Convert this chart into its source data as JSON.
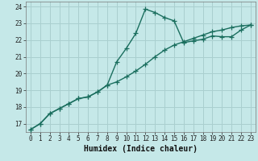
{
  "xlabel": "Humidex (Indice chaleur)",
  "xlim": [
    -0.5,
    23.5
  ],
  "ylim": [
    16.5,
    24.3
  ],
  "yticks": [
    17,
    18,
    19,
    20,
    21,
    22,
    23,
    24
  ],
  "xticks": [
    0,
    1,
    2,
    3,
    4,
    5,
    6,
    7,
    8,
    9,
    10,
    11,
    12,
    13,
    14,
    15,
    16,
    17,
    18,
    19,
    20,
    21,
    22,
    23
  ],
  "background_color": "#c5e8e8",
  "grid_color": "#aacfcf",
  "line_color": "#1a6e5e",
  "line1_x": [
    0,
    1,
    2,
    3,
    4,
    5,
    6,
    7,
    8,
    9,
    10,
    11,
    12,
    13,
    14,
    15,
    16,
    17,
    18,
    19,
    20,
    21,
    22,
    23
  ],
  "line1_y": [
    16.65,
    17.0,
    17.6,
    17.9,
    18.2,
    18.5,
    18.6,
    18.9,
    19.3,
    20.7,
    21.5,
    22.4,
    23.85,
    23.65,
    23.35,
    23.15,
    21.85,
    21.95,
    22.05,
    22.25,
    22.2,
    22.2,
    22.6,
    22.9
  ],
  "line2_x": [
    0,
    1,
    2,
    3,
    4,
    5,
    6,
    7,
    8,
    9,
    10,
    11,
    12,
    13,
    14,
    15,
    16,
    17,
    18,
    19,
    20,
    21,
    22,
    23
  ],
  "line2_y": [
    16.65,
    17.0,
    17.6,
    17.9,
    18.2,
    18.5,
    18.6,
    18.9,
    19.3,
    19.5,
    19.8,
    20.15,
    20.55,
    21.0,
    21.4,
    21.7,
    21.9,
    22.1,
    22.3,
    22.5,
    22.6,
    22.75,
    22.85,
    22.9
  ],
  "marker": "+",
  "markersize": 4,
  "linewidth": 1.0,
  "tick_fontsize": 5.5,
  "xlabel_fontsize": 7.0
}
